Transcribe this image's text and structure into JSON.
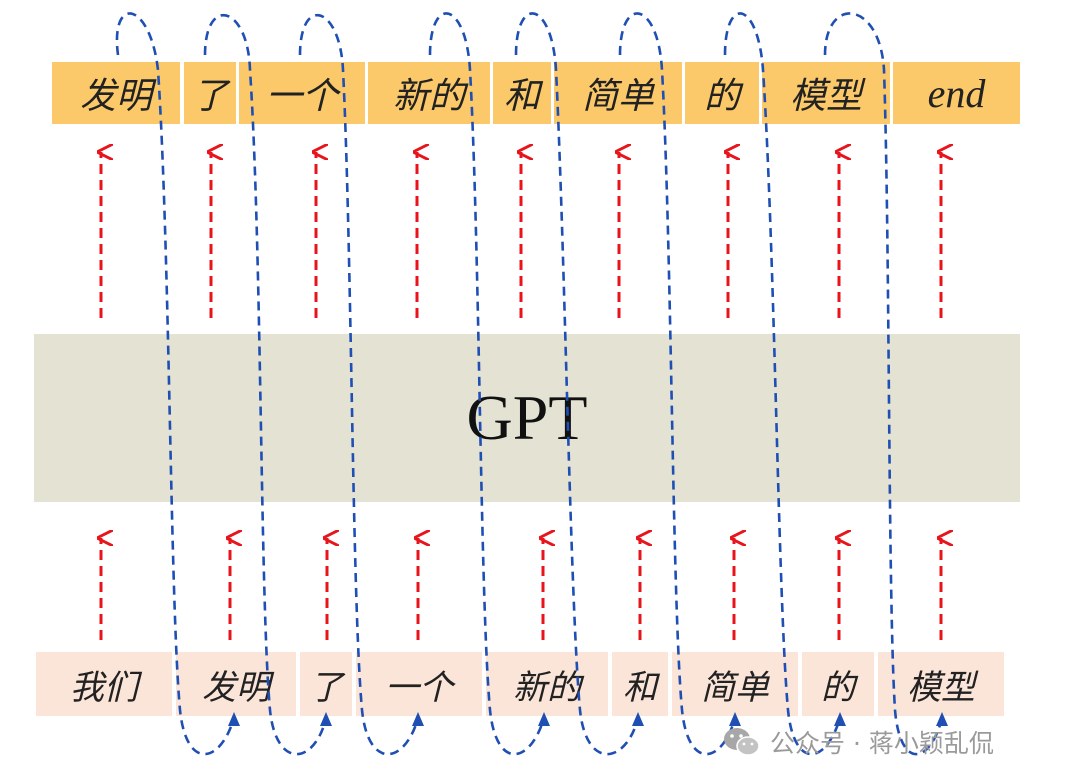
{
  "model": {
    "label": "GPT"
  },
  "output_tokens": [
    {
      "text": "发明"
    },
    {
      "text": "了"
    },
    {
      "text": "一个"
    },
    {
      "text": "新的"
    },
    {
      "text": "和"
    },
    {
      "text": "简单"
    },
    {
      "text": "的"
    },
    {
      "text": "模型"
    },
    {
      "text": "end"
    }
  ],
  "input_tokens": [
    {
      "text": "我们"
    },
    {
      "text": "发明"
    },
    {
      "text": "了"
    },
    {
      "text": "一个"
    },
    {
      "text": "新的"
    },
    {
      "text": "和"
    },
    {
      "text": "简单"
    },
    {
      "text": "的"
    },
    {
      "text": "模型"
    }
  ],
  "colors": {
    "output_bg": "#fbc96a",
    "input_bg": "#fbe5d9",
    "model_bg": "#e4e2d3",
    "flow_arrow": "#e8141c",
    "loop_curve": "#1f4fb3"
  },
  "watermark": {
    "text": "公众号 · 蒋小颖乱侃",
    "icon": "wechat-icon"
  }
}
